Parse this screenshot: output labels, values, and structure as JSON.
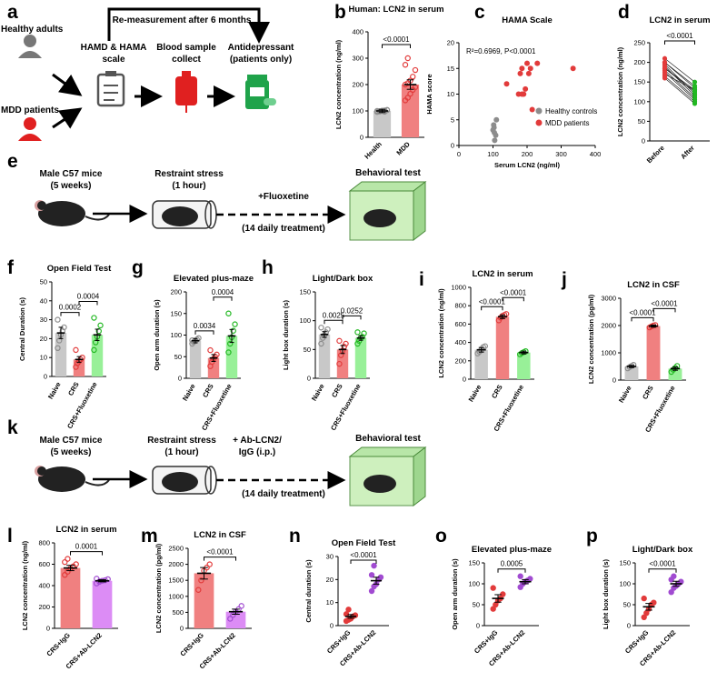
{
  "panel_letters": [
    "a",
    "b",
    "c",
    "d",
    "e",
    "f",
    "g",
    "h",
    "i",
    "j",
    "k",
    "l",
    "m",
    "n",
    "o",
    "p"
  ],
  "schematic_a": {
    "remeasure": "Re-measurement after 6 months",
    "healthy": "Healthy adults",
    "mdd": "MDD patients",
    "hamd_line1": "HAMD & HAMA",
    "hamd_line2": "scale",
    "blood_line1": "Blood sample",
    "blood_line2": "collect",
    "anti_line1": "Antidepressant",
    "anti_line2": "(patients only)"
  },
  "schematic_e": {
    "mice_line1": "Male C57 mice",
    "mice_line2": "(5 weeks)",
    "stress_line1": "Restraint stress",
    "stress_line2": "(1 hour)",
    "drug": "+Fluoxetine",
    "treat": "(14 daily treatment)",
    "behav": "Behavioral test"
  },
  "schematic_k": {
    "mice_line1": "Male C57 mice",
    "mice_line2": "(5 weeks)",
    "stress_line1": "Restraint stress",
    "stress_line2": "(1 hour)",
    "ab_line1": "+ Ab-LCN2/",
    "ab_line2": "IgG (i.p.)",
    "treat": "(14 daily treatment)",
    "behav": "Behavioral test"
  },
  "colors": {
    "gray": "#c8c8c8",
    "gray_dot": "#8c8c8c",
    "red": "#f08080",
    "red_dot": "#e23b3b",
    "green": "#98f098",
    "green_dot": "#22b822",
    "purple": "#dc8cf5",
    "purple_dot": "#a14bd1"
  },
  "chart_data": [
    {
      "id": "b",
      "type": "bar",
      "title": "Human: LCN2 in serum",
      "ylabel": "LCN2 concentration (ng/ml)",
      "categories": [
        "Health",
        "MDD"
      ],
      "ylim": [
        0,
        400
      ],
      "yticks": [
        0,
        100,
        200,
        300,
        400
      ],
      "values": [
        100,
        200
      ],
      "sem": [
        6,
        18
      ],
      "points": [
        [
          96,
          98,
          100,
          102,
          104,
          100,
          99,
          101,
          97,
          103
        ],
        [
          140,
          150,
          165,
          180,
          190,
          200,
          205,
          215,
          230,
          255,
          275,
          300
        ]
      ],
      "comparisons": [
        {
          "a": 0,
          "b": 1,
          "label": "<0.0001"
        }
      ]
    },
    {
      "id": "c",
      "type": "scatter",
      "title": "HAMA Scale",
      "xlabel": "Serum LCN2 (ng/ml)",
      "ylabel": "HAMA score",
      "xlim": [
        0,
        400
      ],
      "ylim": [
        0,
        20
      ],
      "xticks": [
        0,
        100,
        200,
        300,
        400
      ],
      "yticks": [
        0,
        5,
        10,
        15,
        20
      ],
      "annotation": "R²=0.6969, P<0.0001",
      "series": [
        {
          "name": "Healthy controls",
          "x": [
            105,
            108,
            100,
            102,
            110,
            104,
            103
          ],
          "y": [
            1,
            2,
            3,
            4,
            5,
            2.5,
            3.5
          ]
        },
        {
          "name": "MDD patients",
          "x": [
            140,
            175,
            180,
            185,
            190,
            195,
            200,
            205,
            210,
            215,
            230,
            335,
            185
          ],
          "y": [
            12,
            10,
            14,
            15,
            10,
            11,
            16,
            14,
            15,
            7,
            16,
            15,
            10
          ]
        }
      ]
    },
    {
      "id": "d",
      "type": "line",
      "title": "LCN2 in serum",
      "ylabel": "LCN2 concentration (ng/ml)",
      "categories": [
        "Before",
        "After"
      ],
      "ylim": [
        0,
        250
      ],
      "yticks": [
        0,
        50,
        100,
        150,
        200,
        250
      ],
      "pairs": [
        [
          210,
          150
        ],
        [
          200,
          135
        ],
        [
          195,
          120
        ],
        [
          190,
          115
        ],
        [
          185,
          125
        ],
        [
          180,
          110
        ],
        [
          175,
          105
        ],
        [
          170,
          130
        ],
        [
          165,
          100
        ],
        [
          160,
          95
        ],
        [
          200,
          140
        ],
        [
          185,
          130
        ]
      ],
      "comparisons": [
        {
          "a": 0,
          "b": 1,
          "label": "<0.0001"
        }
      ]
    },
    {
      "id": "f",
      "type": "bar",
      "title": "Open Field Test",
      "ylabel": "Central Duration (s)",
      "categories": [
        "Naive",
        "CRS",
        "CRS+Fluoxetine"
      ],
      "ylim": [
        0,
        50
      ],
      "yticks": [
        0,
        10,
        20,
        30,
        40,
        50
      ],
      "values": [
        23,
        9,
        22
      ],
      "sem": [
        3,
        1.5,
        3
      ],
      "points": [
        [
          15,
          19,
          22,
          24,
          26,
          30
        ],
        [
          5,
          7,
          8,
          9,
          10,
          14
        ],
        [
          14,
          18,
          21,
          24,
          27,
          31
        ]
      ],
      "comparisons": [
        {
          "a": 0,
          "b": 1,
          "label": "0.0002"
        },
        {
          "a": 1,
          "b": 2,
          "label": "0.0004"
        }
      ]
    },
    {
      "id": "g",
      "type": "bar",
      "title": "Elevated plus-maze",
      "ylabel": "Open arm duration (s)",
      "categories": [
        "Naive",
        "CRS",
        "CRS+Fluoxetine"
      ],
      "ylim": [
        0,
        200
      ],
      "yticks": [
        0,
        50,
        100,
        150,
        200
      ],
      "values": [
        87,
        47,
        98
      ],
      "sem": [
        5,
        8,
        15
      ],
      "points": [
        [
          80,
          84,
          87,
          90,
          93,
          88
        ],
        [
          28,
          38,
          45,
          50,
          55,
          65
        ],
        [
          60,
          80,
          95,
          110,
          125,
          150
        ]
      ],
      "comparisons": [
        {
          "a": 0,
          "b": 1,
          "label": "0.0034"
        },
        {
          "a": 1,
          "b": 2,
          "label": "0.0004"
        }
      ]
    },
    {
      "id": "h",
      "type": "bar",
      "title": "Light/Dark box",
      "ylabel": "Light box duration (s)",
      "categories": [
        "Naive",
        "CRS",
        "CRS+Fluoxetine"
      ],
      "ylim": [
        0,
        150
      ],
      "yticks": [
        0,
        50,
        100,
        150
      ],
      "values": [
        76,
        50,
        70
      ],
      "sem": [
        5,
        7,
        4
      ],
      "points": [
        [
          60,
          70,
          75,
          80,
          85,
          88
        ],
        [
          25,
          40,
          48,
          55,
          60,
          65
        ],
        [
          60,
          65,
          70,
          72,
          78,
          80
        ]
      ],
      "comparisons": [
        {
          "a": 0,
          "b": 1,
          "label": "0.0025"
        },
        {
          "a": 1,
          "b": 2,
          "label": "0.0252"
        }
      ]
    },
    {
      "id": "i",
      "type": "bar",
      "title": "LCN2 in serum",
      "ylabel": "LCN2 concentration (ng/ml)",
      "categories": [
        "Naive",
        "CRS",
        "CRS+Fluoxetine"
      ],
      "ylim": [
        0,
        1000
      ],
      "yticks": [
        0,
        200,
        400,
        600,
        800,
        1000
      ],
      "values": [
        320,
        680,
        290
      ],
      "sem": [
        25,
        20,
        15
      ],
      "points": [
        [
          280,
          300,
          320,
          350,
          360
        ],
        [
          640,
          670,
          690,
          700,
          710
        ],
        [
          270,
          285,
          295,
          305
        ]
      ],
      "comparisons": [
        {
          "a": 0,
          "b": 1,
          "label": "<0.0001"
        },
        {
          "a": 1,
          "b": 2,
          "label": "<0.0001"
        }
      ]
    },
    {
      "id": "j",
      "type": "bar",
      "title": "LCN2 in CSF",
      "ylabel": "LCN2 concentration (pg/ml)",
      "categories": [
        "Naive",
        "CRS",
        "CRS+Fluoxetine"
      ],
      "ylim": [
        0,
        3000
      ],
      "yticks": [
        0,
        1000,
        2000,
        3000
      ],
      "values": [
        500,
        1980,
        420
      ],
      "sem": [
        40,
        40,
        60
      ],
      "points": [
        [
          430,
          480,
          520,
          560
        ],
        [
          1930,
          1970,
          2000,
          2020
        ],
        [
          300,
          380,
          450,
          520
        ]
      ],
      "comparisons": [
        {
          "a": 0,
          "b": 1,
          "label": "<0.0001"
        },
        {
          "a": 1,
          "b": 2,
          "label": "<0.0001"
        }
      ]
    },
    {
      "id": "l",
      "type": "bar",
      "title": "LCN2 in serum",
      "ylabel": "LCN2 concentration (ng/ml)",
      "categories": [
        "CRS+IgG",
        "CRS+Ab-LCN2"
      ],
      "ylim": [
        0,
        800
      ],
      "yticks": [
        0,
        200,
        400,
        600,
        800
      ],
      "values": [
        565,
        445
      ],
      "sem": [
        25,
        10
      ],
      "points": [
        [
          500,
          530,
          560,
          580,
          600,
          620,
          650
        ],
        [
          420,
          435,
          445,
          450,
          460,
          465,
          440
        ]
      ],
      "comparisons": [
        {
          "a": 0,
          "b": 1,
          "label": "0.0001"
        }
      ]
    },
    {
      "id": "m",
      "type": "bar",
      "title": "LCN2 in CSF",
      "ylabel": "LCN2 concentration (pg/ml)",
      "categories": [
        "CRS+IgG",
        "CRS+Ab-LCN2"
      ],
      "ylim": [
        0,
        2500
      ],
      "yticks": [
        0,
        500,
        1000,
        1500,
        2000,
        2500
      ],
      "values": [
        1720,
        520
      ],
      "sem": [
        180,
        80
      ],
      "points": [
        [
          1200,
          1500,
          1800,
          1900,
          2000
        ],
        [
          300,
          420,
          520,
          600,
          700
        ]
      ],
      "comparisons": [
        {
          "a": 0,
          "b": 1,
          "label": "<0.0001"
        }
      ]
    },
    {
      "id": "n",
      "type": "scatter-bar",
      "title": "Open Field Test",
      "ylabel": "Central duration (s)",
      "categories": [
        "CRS+IgG",
        "CRS+Ab-LCN2"
      ],
      "ylim": [
        0,
        30
      ],
      "yticks": [
        0,
        10,
        20,
        30
      ],
      "values": [
        4,
        19.5
      ],
      "sem": [
        0.8,
        1.5
      ],
      "points": [
        [
          2,
          2.5,
          3,
          4,
          4.5,
          5,
          7
        ],
        [
          15,
          17,
          18,
          20,
          21,
          22,
          26
        ]
      ],
      "comparisons": [
        {
          "a": 0,
          "b": 1,
          "label": "<0.0001"
        }
      ]
    },
    {
      "id": "o",
      "type": "scatter-bar",
      "title": "Elevated plus-maze",
      "ylabel": "Open arm duration (s)",
      "categories": [
        "CRS+IgG",
        "CRS+Ab-LCN2"
      ],
      "ylim": [
        0,
        150
      ],
      "yticks": [
        0,
        50,
        100,
        150
      ],
      "values": [
        65,
        105
      ],
      "sem": [
        9,
        5
      ],
      "points": [
        [
          40,
          50,
          60,
          65,
          75,
          90
        ],
        [
          92,
          100,
          105,
          108,
          112,
          118
        ]
      ],
      "comparisons": [
        {
          "a": 0,
          "b": 1,
          "label": "0.0005"
        }
      ]
    },
    {
      "id": "p",
      "type": "scatter-bar",
      "title": "Light/Dark box",
      "ylabel": "Light box duration (s)",
      "categories": [
        "CRS+IgG",
        "CRS+Ab-LCN2"
      ],
      "ylim": [
        0,
        150
      ],
      "yticks": [
        0,
        50,
        100,
        150
      ],
      "values": [
        45,
        100
      ],
      "sem": [
        8,
        6
      ],
      "points": [
        [
          20,
          30,
          40,
          50,
          55,
          65
        ],
        [
          80,
          90,
          95,
          100,
          105,
          110,
          118
        ]
      ],
      "comparisons": [
        {
          "a": 0,
          "b": 1,
          "label": "<0.0001"
        }
      ]
    }
  ]
}
